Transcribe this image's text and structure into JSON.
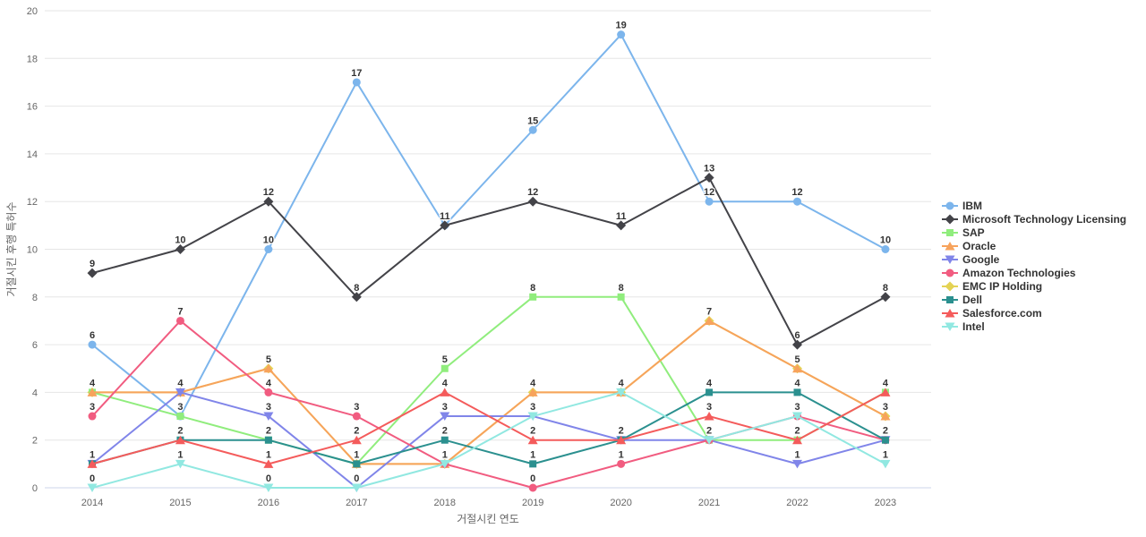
{
  "chart_data": {
    "type": "line",
    "title": "",
    "xlabel": "거절시킨 연도",
    "ylabel": "거절시킨 후행 특허수",
    "categories": [
      "2014",
      "2015",
      "2016",
      "2017",
      "2018",
      "2019",
      "2020",
      "2021",
      "2022",
      "2023"
    ],
    "ylim": [
      0,
      20
    ],
    "ytick_step": 2,
    "grid": true,
    "legend_position": "right",
    "axis_colors": {
      "grid": "#e6e6e6",
      "axis_line": "#ccd6eb",
      "tick_text": "#666666",
      "label_text": "#333333"
    },
    "series": [
      {
        "name": "IBM",
        "color": "#7cb5ec",
        "marker": "circle",
        "z": 1,
        "values": [
          6,
          3,
          10,
          17,
          11,
          15,
          19,
          12,
          12,
          10
        ]
      },
      {
        "name": "Microsoft Technology Licensing",
        "color": "#434348",
        "marker": "diamond",
        "z": 2,
        "values": [
          9,
          10,
          12,
          8,
          11,
          12,
          11,
          13,
          6,
          8
        ]
      },
      {
        "name": "SAP",
        "color": "#90ed7d",
        "marker": "square",
        "z": 3,
        "values": [
          4,
          3,
          2,
          1,
          5,
          8,
          8,
          2,
          2,
          4
        ]
      },
      {
        "name": "Oracle",
        "color": "#f7a35c",
        "marker": "triangle",
        "z": 4,
        "values": [
          4,
          4,
          5,
          1,
          1,
          4,
          4,
          7,
          5,
          3
        ]
      },
      {
        "name": "Google",
        "color": "#8085e9",
        "marker": "triangle-down",
        "z": 5,
        "values": [
          1,
          4,
          3,
          0,
          3,
          3,
          2,
          2,
          1,
          2
        ]
      },
      {
        "name": "Amazon Technologies",
        "color": "#f15c80",
        "marker": "circle",
        "z": 6,
        "values": [
          3,
          7,
          4,
          3,
          1,
          0,
          1,
          2,
          3,
          2
        ]
      },
      {
        "name": "EMC IP Holding",
        "color": "#e4d354",
        "marker": "diamond",
        "z": 0,
        "values": [
          4,
          4,
          5,
          1,
          1,
          4,
          4,
          7,
          5,
          3
        ]
      },
      {
        "name": "Dell",
        "color": "#2b908f",
        "marker": "square",
        "z": 7,
        "values": [
          1,
          2,
          2,
          1,
          2,
          1,
          2,
          4,
          4,
          2
        ]
      },
      {
        "name": "Salesforce.com",
        "color": "#f45b5b",
        "marker": "triangle",
        "z": 8,
        "values": [
          1,
          2,
          1,
          2,
          4,
          2,
          2,
          3,
          2,
          4
        ]
      },
      {
        "name": "Intel",
        "color": "#91e8e1",
        "marker": "triangle-down",
        "z": 9,
        "values": [
          0,
          1,
          0,
          0,
          1,
          3,
          4,
          2,
          3,
          1
        ]
      }
    ]
  }
}
